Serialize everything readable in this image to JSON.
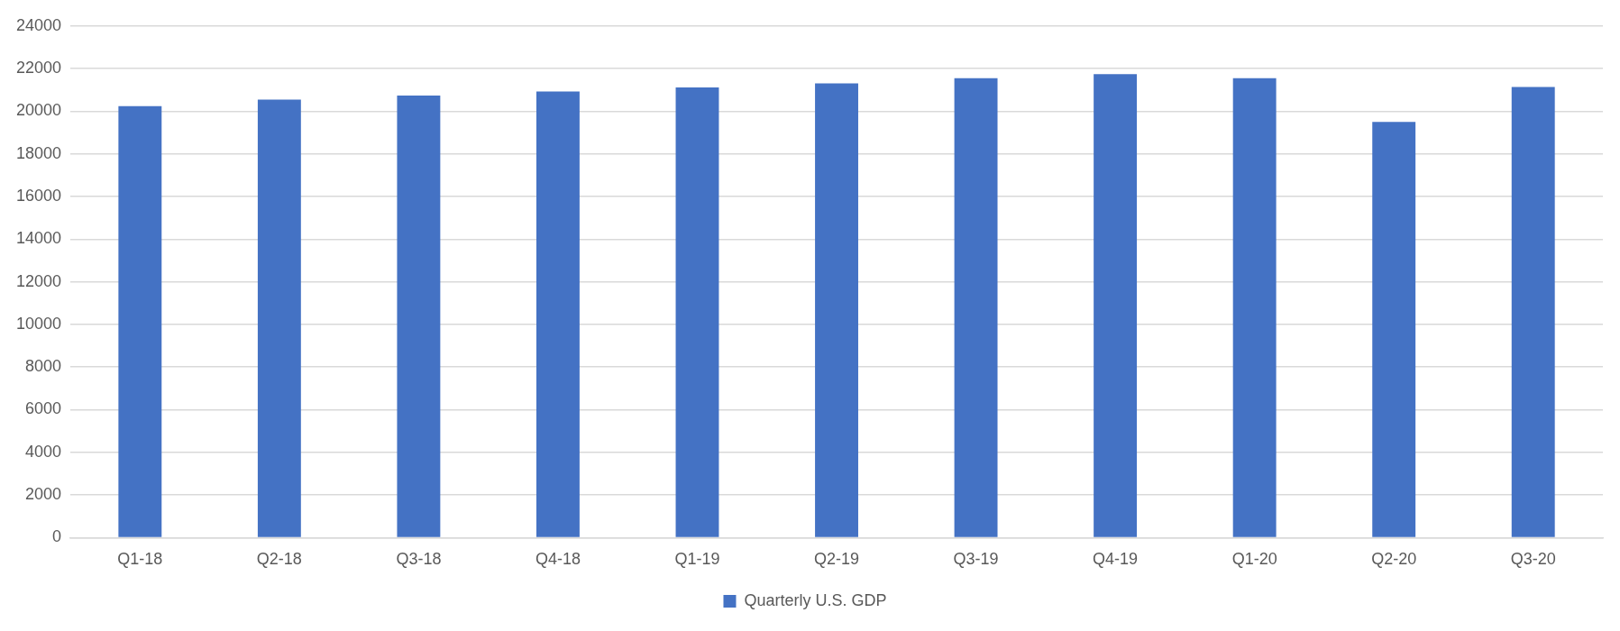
{
  "chart_data": {
    "type": "bar",
    "categories": [
      "Q1-18",
      "Q2-18",
      "Q3-18",
      "Q4-18",
      "Q1-19",
      "Q2-19",
      "Q3-19",
      "Q4-19",
      "Q1-20",
      "Q2-20",
      "Q3-20"
    ],
    "series": [
      {
        "name": "Quarterly U.S. GDP",
        "color": "#4472c4",
        "values": [
          20240,
          20550,
          20740,
          20930,
          21120,
          21310,
          21550,
          21740,
          21550,
          19500,
          21140
        ]
      }
    ],
    "ylim": [
      0,
      24000
    ],
    "yticks": [
      0,
      2000,
      4000,
      6000,
      8000,
      10000,
      12000,
      14000,
      16000,
      18000,
      20000,
      22000,
      24000
    ],
    "grid": "y",
    "legend": "bottom"
  }
}
